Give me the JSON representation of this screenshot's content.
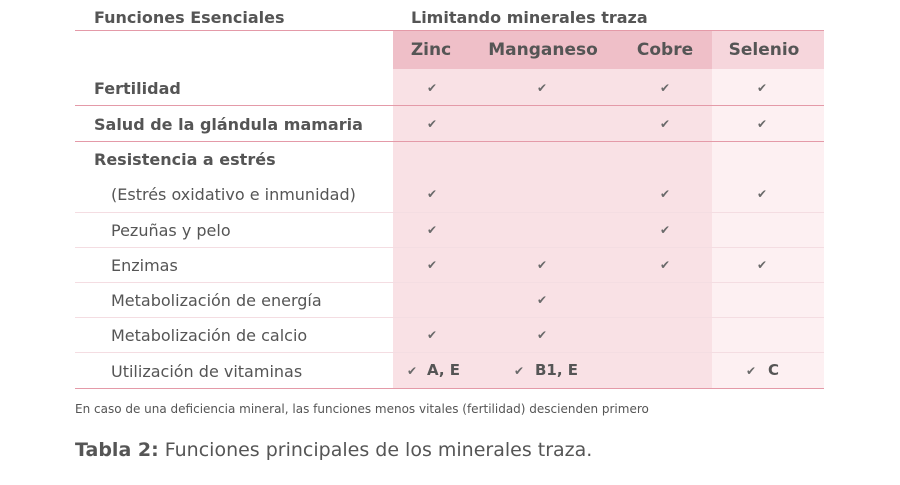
{
  "header": {
    "functions_title": "Funciones Esenciales",
    "minerals_title": "Limitando minerales traza"
  },
  "columns": [
    "Zinc",
    "Manganeso",
    "Cobre",
    "Selenio"
  ],
  "check_symbol": "✔",
  "rows": [
    {
      "label": "Fertilidad",
      "cells": [
        "✔",
        "✔",
        "✔",
        "✔"
      ]
    },
    {
      "label": "Salud de la glándula mamaria",
      "cells": [
        "✔",
        "",
        "✔",
        "✔"
      ]
    },
    {
      "label": "Resistencia a estrés",
      "cells": [
        "",
        "",
        "",
        ""
      ]
    },
    {
      "label": "(Estrés oxidativo e inmunidad)",
      "cells": [
        "✔",
        "",
        "✔",
        "✔"
      ]
    },
    {
      "label": "Pezuñas y pelo",
      "cells": [
        "✔",
        "",
        "✔",
        ""
      ]
    },
    {
      "label": "Enzimas",
      "cells": [
        "✔",
        "✔",
        "✔",
        "✔"
      ]
    },
    {
      "label": "Metabolización de energía",
      "cells": [
        "",
        "✔",
        "",
        ""
      ]
    },
    {
      "label": "Metabolización de calcio",
      "cells": [
        "✔",
        "✔",
        "",
        ""
      ]
    },
    {
      "label": "Utilización de vitaminas",
      "cells": [
        "✔",
        "✔",
        "",
        "✔"
      ],
      "notes": [
        "A, E",
        "B1, E",
        "",
        "C"
      ]
    }
  ],
  "footnote": "En caso de una deficiencia mineral, las funciones menos vitales (fertilidad) descienden primero",
  "caption": {
    "label": "Tabla 2:",
    "text": " Funciones principales de los minerales traza."
  },
  "colors": {
    "band_main": "#f9e1e5",
    "band_selenio": "#fdf0f2",
    "header_main": "#efbfc8",
    "rule": "#e49aa8"
  }
}
